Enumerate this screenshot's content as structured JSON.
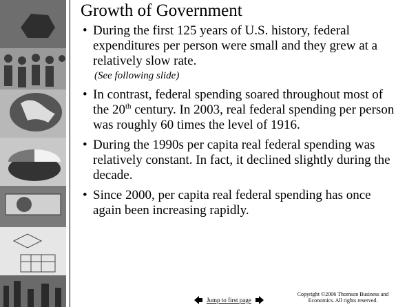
{
  "slide": {
    "title": "Growth of Government",
    "bullets": [
      {
        "text": "During the first 125 years of U.S. history, federal expenditures per person were small and they grew at a relatively slow rate.",
        "note": "(See following slide)"
      },
      {
        "text": "In contrast, federal spending soared throughout most of the 20",
        "superscript": "th",
        "text_after": " century.  In 2003, real federal spending per person was roughly 60 times the level of 1916."
      },
      {
        "text": "During the 1990s per capita real federal spending was relatively constant. In fact, it declined slightly during the decade."
      },
      {
        "text": "Since 2000, per capita real federal spending has once again been increasing rapidly."
      }
    ],
    "footer": {
      "link": "Jump to first page",
      "copyright": "Copyright ©2006  Thomson Business and Economics. All rights reserved."
    }
  }
}
